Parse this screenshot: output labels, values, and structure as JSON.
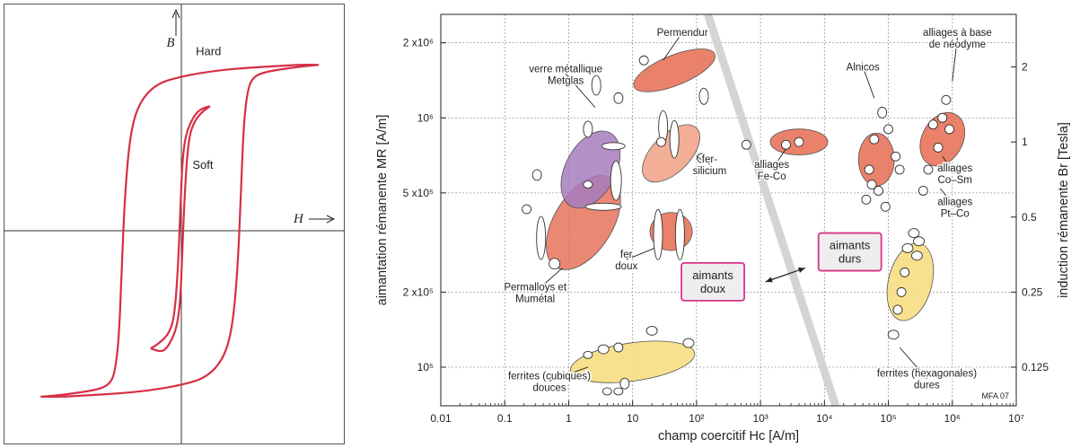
{
  "chart_data": [
    {
      "type": "line",
      "x_axis_label": "H",
      "y_axis_label": "B",
      "grid": false,
      "series": [
        {
          "name": "Hard",
          "color": "#d62f45",
          "points": [
            [
              -16.5,
              -8.6
            ],
            [
              -15,
              -8.55
            ],
            [
              -13,
              -8.45
            ],
            [
              -10,
              -8.25
            ],
            [
              -8.5,
              -8.0
            ],
            [
              -7.8,
              -7.4
            ],
            [
              -7.3,
              -5.5
            ],
            [
              -7.0,
              -2.0
            ],
            [
              -6.6,
              2.0
            ],
            [
              -6.0,
              5.0
            ],
            [
              -5.0,
              6.6
            ],
            [
              -3.0,
              7.6
            ],
            [
              0,
              8.0
            ],
            [
              4,
              8.3
            ],
            [
              8,
              8.45
            ],
            [
              12,
              8.55
            ],
            [
              14,
              8.6
            ],
            [
              16.5,
              8.6
            ],
            [
              15,
              8.55
            ],
            [
              13,
              8.45
            ],
            [
              10,
              8.25
            ],
            [
              8.5,
              8.0
            ],
            [
              7.8,
              7.4
            ],
            [
              7.3,
              5.5
            ],
            [
              7.0,
              2.0
            ],
            [
              6.6,
              -2.0
            ],
            [
              6.0,
              -5.0
            ],
            [
              5.0,
              -6.6
            ],
            [
              3.0,
              -7.6
            ],
            [
              0,
              -8.0
            ],
            [
              -4,
              -8.3
            ],
            [
              -8,
              -8.45
            ],
            [
              -12,
              -8.55
            ],
            [
              -14,
              -8.6
            ],
            [
              -16.5,
              -8.6
            ]
          ]
        },
        {
          "name": "Soft",
          "color": "#d62f45",
          "points": [
            [
              -3.6,
              -6.1
            ],
            [
              -2.5,
              -5.8
            ],
            [
              -1.4,
              -5.3
            ],
            [
              -0.8,
              -4.4
            ],
            [
              -0.4,
              -2.0
            ],
            [
              -0.1,
              1.2
            ],
            [
              0.1,
              3.5
            ],
            [
              0.5,
              5.0
            ],
            [
              1.4,
              5.9
            ],
            [
              2.2,
              6.3
            ],
            [
              3.6,
              6.5
            ],
            [
              2.5,
              6.2
            ],
            [
              1.4,
              5.6
            ],
            [
              0.8,
              4.6
            ],
            [
              0.4,
              2.0
            ],
            [
              0.1,
              -1.2
            ],
            [
              -0.1,
              -3.5
            ],
            [
              -0.5,
              -5.0
            ],
            [
              -1.4,
              -5.9
            ],
            [
              -2.2,
              -6.3
            ],
            [
              -3.6,
              -6.1
            ]
          ]
        }
      ],
      "annotations": [
        {
          "text": "Hard",
          "x": 1.7,
          "y": 9.1
        },
        {
          "text": "Soft",
          "x": 1.3,
          "y": 3.2
        }
      ]
    },
    {
      "type": "scatter",
      "x_axis_label": "champ coercitif Hc [A/m]",
      "y_axis_label": "aimantation rémanente MR [A/m]",
      "y2_axis_label": "induction rémanente Br [Tesla]",
      "x_scale": "log",
      "y_scale": "log",
      "xlim": [
        0.01,
        10000000
      ],
      "ylim": [
        70000,
        2600000
      ],
      "grid": true,
      "x_ticks": [
        {
          "v": 0.01,
          "label": "0.01"
        },
        {
          "v": 0.1,
          "label": "0.1"
        },
        {
          "v": 1,
          "label": "1"
        },
        {
          "v": 10,
          "label": "10"
        },
        {
          "v": 100,
          "label": "10²"
        },
        {
          "v": 1000,
          "label": "10³"
        },
        {
          "v": 10000,
          "label": "10⁴"
        },
        {
          "v": 100000,
          "label": "10⁵"
        },
        {
          "v": 1000000,
          "label": "10⁶"
        },
        {
          "v": 10000000,
          "label": "10⁷"
        }
      ],
      "y_ticks": [
        {
          "v": 100000,
          "label": "10⁵"
        },
        {
          "v": 200000,
          "label": "2 x10⁵"
        },
        {
          "v": 500000,
          "label": "5 x10⁵"
        },
        {
          "v": 1000000,
          "label": "10⁶"
        },
        {
          "v": 2000000,
          "label": "2 x10⁶"
        }
      ],
      "y2_ticks": [
        {
          "v": 100000,
          "label": "0.125"
        },
        {
          "v": 200000,
          "label": "0.25"
        },
        {
          "v": 400000,
          "label": "0.5"
        },
        {
          "v": 800000,
          "label": "1"
        },
        {
          "v": 1600000,
          "label": "2"
        }
      ],
      "divider": {
        "from": [
          150,
          2600000
        ],
        "to": [
          15000,
          70000
        ],
        "color": "#d4d4d4"
      },
      "regions": [
        {
          "name": "Permalloys et Mumétal",
          "color": "#e8735a",
          "opacity": 0.85,
          "cx": 1.7,
          "cy": 380000,
          "rx": 0.82,
          "ry": 0.3,
          "rot": -58,
          "label": "Permalloys et\nMumétal",
          "lx": 0.3,
          "ly": 200000,
          "ax": 0.8,
          "ay": 250000
        },
        {
          "name": "verre métallique Metglas",
          "color": "#a67dbe",
          "opacity": 0.85,
          "cx": 2.2,
          "cy": 620000,
          "rx": 0.65,
          "ry": 0.24,
          "rot": -62,
          "label": "verre métallique\nMetglas",
          "lx": 0.9,
          "ly": 1500000,
          "ax": 2.6,
          "ay": 1100000
        },
        {
          "name": "fer-silicium",
          "color": "#f2a58d",
          "opacity": 0.9,
          "cx": 40,
          "cy": 720000,
          "rx": 0.56,
          "ry": 0.15,
          "rot": -45,
          "label": "fer-\nsilicium",
          "lx": 160,
          "ly": 650000,
          "ax": 100,
          "ay": 700000
        },
        {
          "name": "Permendur",
          "color": "#e8735a",
          "opacity": 0.9,
          "cx": 45,
          "cy": 1550000,
          "rx": 0.68,
          "ry": 0.09,
          "rot": -22,
          "label": "Permendur",
          "lx": 60,
          "ly": 2200000,
          "ax": 30,
          "ay": 1700000
        },
        {
          "name": "fer doux",
          "color": "#e8735a",
          "opacity": 0.9,
          "cx": 40,
          "cy": 350000,
          "rx": 0.33,
          "ry": 0.15,
          "rot": 0,
          "label": "fer\ndoux",
          "lx": 8,
          "ly": 270000,
          "ax": 22,
          "ay": 300000
        },
        {
          "name": "alliages Fe-Co",
          "color": "#e8735a",
          "opacity": 0.9,
          "cx": 4000,
          "cy": 800000,
          "rx": 0.45,
          "ry": 0.06,
          "rot": 0,
          "label": "alliages\nFe-Co",
          "lx": 1500,
          "ly": 620000,
          "ax": 2500,
          "ay": 750000
        },
        {
          "name": "Alnicos",
          "color": "#e8735a",
          "opacity": 0.9,
          "cx": 65000,
          "cy": 680000,
          "rx": 0.28,
          "ry": 0.26,
          "rot": 0,
          "label": "Alnicos",
          "lx": 40000,
          "ly": 1600000,
          "ax": 60000,
          "ay": 1200000
        },
        {
          "name": "alliages à base de néodyme",
          "color": "#e8735a",
          "opacity": 0.9,
          "cx": 700000,
          "cy": 820000,
          "rx": 0.44,
          "ry": 0.17,
          "rot": -62,
          "label": "alliages à base\nde néodyme",
          "lx": 1200000,
          "ly": 2100000,
          "ax": 1000000,
          "ay": 1400000
        },
        {
          "name": "ferrites (cubiques) douces",
          "color": "#f6de82",
          "opacity": 0.9,
          "cx": 10,
          "cy": 105000,
          "rx": 0.98,
          "ry": 0.15,
          "rot": -8,
          "label": "ferrites (cubiques)\ndouces",
          "lx": 0.5,
          "ly": 88000,
          "ax": 2.0,
          "ay": 100000
        },
        {
          "name": "ferrites (hexagonales) dures",
          "color": "#f6de82",
          "opacity": 0.9,
          "cx": 220000,
          "cy": 220000,
          "rx": 0.62,
          "ry": 0.19,
          "rot": -76,
          "label": "ferrites (hexagonales)\ndures",
          "lx": 400000,
          "ly": 90000,
          "ax": 150000,
          "ay": 120000
        }
      ],
      "labels_only": [
        {
          "label": "alliages\nCo–Sm",
          "lx": 1100000,
          "ly": 600000,
          "ax": 700000,
          "ay": 700000
        },
        {
          "label": "alliages\nPt–Co",
          "lx": 1100000,
          "ly": 440000,
          "ax": 650000,
          "ay": 520000
        }
      ],
      "boxes": [
        {
          "text": "aimants\ndoux",
          "cx": 180,
          "cy": 220000
        },
        {
          "text": "aimants\ndurs",
          "cx": 25000,
          "cy": 290000
        }
      ],
      "box_arrow": {
        "from": [
          5000,
          250000
        ],
        "to": [
          1200,
          220000
        ]
      },
      "points": [
        {
          "x": 0.22,
          "y": 430000,
          "w": 5,
          "h": 5
        },
        {
          "x": 0.32,
          "y": 590000,
          "w": 5,
          "h": 6
        },
        {
          "x": 0.37,
          "y": 330000,
          "w": 5,
          "h": 24
        },
        {
          "x": 0.6,
          "y": 260000,
          "w": 6,
          "h": 6
        },
        {
          "x": 2.0,
          "y": 540000,
          "w": 5,
          "h": 4
        },
        {
          "x": 2.7,
          "y": 1350000,
          "w": 5,
          "h": 11
        },
        {
          "x": 2.0,
          "y": 900000,
          "w": 5,
          "h": 9
        },
        {
          "x": 6.0,
          "y": 1200000,
          "w": 5,
          "h": 6
        },
        {
          "x": 5.0,
          "y": 770000,
          "w": 13,
          "h": 4
        },
        {
          "x": 5.5,
          "y": 560000,
          "w": 6,
          "h": 22
        },
        {
          "x": 3.5,
          "y": 440000,
          "w": 20,
          "h": 4
        },
        {
          "x": 15,
          "y": 1700000,
          "w": 5,
          "h": 5
        },
        {
          "x": 130,
          "y": 1220000,
          "w": 5,
          "h": 9
        },
        {
          "x": 30,
          "y": 920000,
          "w": 5,
          "h": 18
        },
        {
          "x": 45,
          "y": 820000,
          "w": 5,
          "h": 21
        },
        {
          "x": 28,
          "y": 800000,
          "w": 5,
          "h": 5
        },
        {
          "x": 120,
          "y": 690000,
          "w": 5,
          "h": 5
        },
        {
          "x": 25,
          "y": 340000,
          "w": 5,
          "h": 28
        },
        {
          "x": 55,
          "y": 340000,
          "w": 5,
          "h": 28
        },
        {
          "x": 600,
          "y": 780000,
          "w": 5,
          "h": 5
        },
        {
          "x": 2500,
          "y": 780000,
          "w": 5,
          "h": 5
        },
        {
          "x": 4000,
          "y": 800000,
          "w": 5,
          "h": 5
        },
        {
          "x": 80000,
          "y": 1050000,
          "w": 5,
          "h": 6
        },
        {
          "x": 100000,
          "y": 900000,
          "w": 5,
          "h": 5
        },
        {
          "x": 60000,
          "y": 820000,
          "w": 5,
          "h": 5
        },
        {
          "x": 130000,
          "y": 700000,
          "w": 5,
          "h": 5
        },
        {
          "x": 50000,
          "y": 620000,
          "w": 5,
          "h": 5
        },
        {
          "x": 150000,
          "y": 620000,
          "w": 5,
          "h": 5
        },
        {
          "x": 55000,
          "y": 540000,
          "w": 5,
          "h": 5
        },
        {
          "x": 70000,
          "y": 510000,
          "w": 5,
          "h": 5
        },
        {
          "x": 45000,
          "y": 470000,
          "w": 5,
          "h": 5
        },
        {
          "x": 90000,
          "y": 440000,
          "w": 5,
          "h": 5
        },
        {
          "x": 500000,
          "y": 940000,
          "w": 5,
          "h": 5
        },
        {
          "x": 700000,
          "y": 1000000,
          "w": 5,
          "h": 5
        },
        {
          "x": 800000,
          "y": 1180000,
          "w": 5,
          "h": 5
        },
        {
          "x": 900000,
          "y": 900000,
          "w": 5,
          "h": 5
        },
        {
          "x": 600000,
          "y": 760000,
          "w": 5,
          "h": 5
        },
        {
          "x": 420000,
          "y": 620000,
          "w": 5,
          "h": 5
        },
        {
          "x": 350000,
          "y": 510000,
          "w": 5,
          "h": 5
        },
        {
          "x": 250000,
          "y": 345000,
          "w": 6,
          "h": 5
        },
        {
          "x": 300000,
          "y": 320000,
          "w": 6,
          "h": 5
        },
        {
          "x": 200000,
          "y": 300000,
          "w": 6,
          "h": 5
        },
        {
          "x": 280000,
          "y": 280000,
          "w": 6,
          "h": 5
        },
        {
          "x": 180000,
          "y": 240000,
          "w": 5,
          "h": 5
        },
        {
          "x": 160000,
          "y": 200000,
          "w": 5,
          "h": 5
        },
        {
          "x": 140000,
          "y": 170000,
          "w": 5,
          "h": 5
        },
        {
          "x": 120000,
          "y": 135000,
          "w": 6,
          "h": 5
        },
        {
          "x": 3.5,
          "y": 118000,
          "w": 6,
          "h": 5
        },
        {
          "x": 6.0,
          "y": 120000,
          "w": 5,
          "h": 5
        },
        {
          "x": 20,
          "y": 140000,
          "w": 6,
          "h": 5
        },
        {
          "x": 75,
          "y": 125000,
          "w": 6,
          "h": 5
        },
        {
          "x": 2.0,
          "y": 112000,
          "w": 5,
          "h": 4
        },
        {
          "x": 7.5,
          "y": 86000,
          "w": 5,
          "h": 6
        },
        {
          "x": 4.0,
          "y": 80000,
          "w": 5,
          "h": 4
        },
        {
          "x": 6.0,
          "y": 80000,
          "w": 5,
          "h": 4
        }
      ],
      "credit": "MFA 07"
    }
  ]
}
